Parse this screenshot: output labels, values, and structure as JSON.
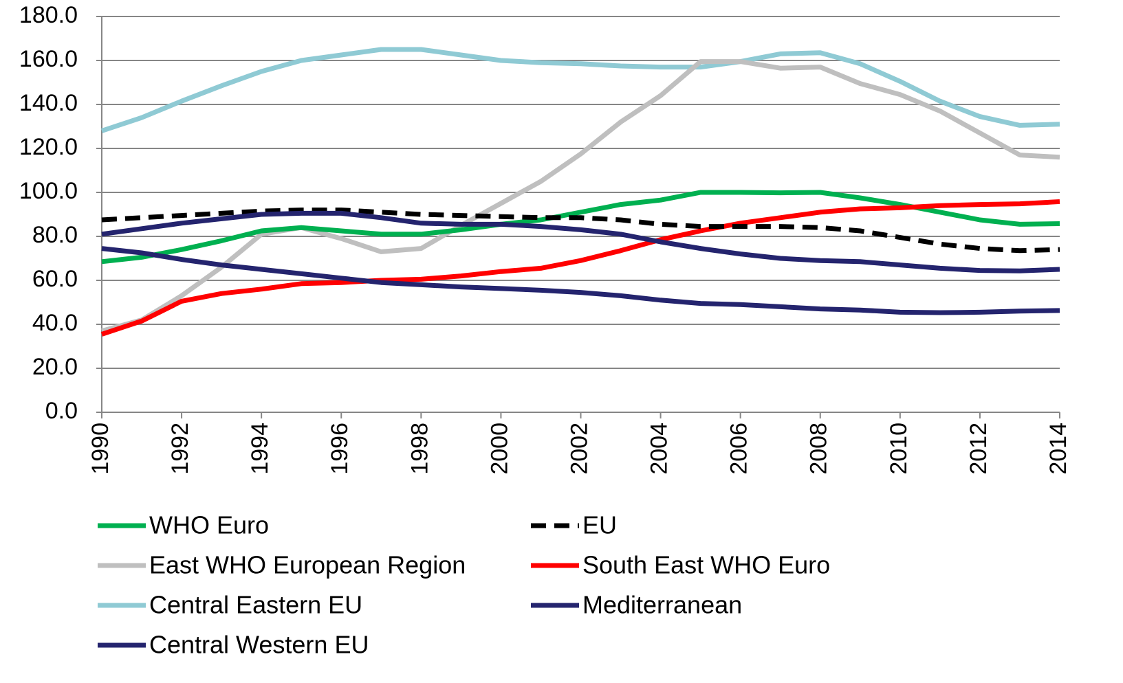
{
  "chart_data": {
    "type": "line",
    "x": [
      1990,
      1991,
      1992,
      1993,
      1994,
      1995,
      1996,
      1997,
      1998,
      1999,
      2000,
      2001,
      2002,
      2003,
      2004,
      2005,
      2006,
      2007,
      2008,
      2009,
      2010,
      2011,
      2012,
      2013,
      2014
    ],
    "series": [
      {
        "name": "WHO Euro",
        "color": "#00b050",
        "values": [
          68.5,
          70.5,
          74,
          78,
          82.5,
          84,
          82.5,
          81,
          81,
          83,
          85.5,
          87.5,
          91,
          94.5,
          96.5,
          100,
          100,
          99.8,
          100,
          97.5,
          94.5,
          91,
          87.5,
          85.5,
          85.8
        ]
      },
      {
        "name": "EU",
        "color": "#000000",
        "dash": true,
        "values": [
          87.5,
          88.5,
          89.5,
          90.5,
          91.5,
          92,
          92,
          91,
          90,
          89.5,
          89,
          88.5,
          88.5,
          87.5,
          85.5,
          84.5,
          84.5,
          84.5,
          84,
          82.5,
          79.5,
          76.5,
          74.5,
          73.5,
          74
        ]
      },
      {
        "name": "East WHO European Region",
        "color": "#bfbfbf",
        "values": [
          37,
          42,
          53,
          66,
          81,
          84,
          79,
          73,
          74.5,
          85,
          95,
          105,
          117.5,
          132,
          144,
          159.5,
          159.5,
          156.5,
          157,
          149.5,
          144.5,
          137,
          127,
          117,
          116
        ]
      },
      {
        "name": "South East WHO Euro",
        "color": "#ff0000",
        "values": [
          35.5,
          41.5,
          50.5,
          54,
          56,
          58.5,
          59,
          60,
          60.5,
          62,
          64,
          65.5,
          69,
          73.5,
          78.5,
          82.5,
          86,
          88.5,
          91,
          92.5,
          93,
          94,
          94.5,
          94.8,
          95.8
        ]
      },
      {
        "name": "Central Eastern EU",
        "color": "#8fcad4",
        "values": [
          128,
          134,
          141.5,
          148.5,
          155,
          160,
          162.5,
          165,
          165,
          162.5,
          160,
          159,
          158.5,
          157.5,
          157,
          157,
          159.5,
          163,
          163.5,
          158.5,
          150.5,
          141.5,
          134.5,
          130.5,
          131
        ]
      },
      {
        "name": "Mediterranean",
        "color": "#24246e",
        "values": [
          74.5,
          72.5,
          69.5,
          67,
          65,
          63,
          61,
          59,
          58,
          57,
          56.3,
          55.5,
          54.5,
          53,
          51,
          49.5,
          49,
          48,
          47,
          46.5,
          45.5,
          45.3,
          45.5,
          46,
          46.3
        ]
      },
      {
        "name": "Central Western EU",
        "color": "#24246e",
        "values": [
          81,
          83.5,
          86,
          88,
          90,
          90.5,
          90.5,
          88.5,
          86,
          85.5,
          85.5,
          84.5,
          83,
          81,
          77.5,
          74.5,
          72,
          70,
          69,
          68.5,
          67,
          65.5,
          64.5,
          64.3,
          65
        ]
      }
    ],
    "xlim": [
      1990,
      2014
    ],
    "xticks": [
      1990,
      1992,
      1994,
      1996,
      1998,
      2000,
      2002,
      2004,
      2006,
      2008,
      2010,
      2012,
      2014
    ],
    "ylim": [
      0,
      180
    ],
    "yticks": [
      {
        "value": 0,
        "label": "0.0"
      },
      {
        "value": 20,
        "label": "20.0"
      },
      {
        "value": 40,
        "label": "40.0"
      },
      {
        "value": 60,
        "label": "60.0"
      },
      {
        "value": 80,
        "label": "80.0"
      },
      {
        "value": 100,
        "label": "100.0"
      },
      {
        "value": 120,
        "label": "120.0"
      },
      {
        "value": 140,
        "label": "140.0"
      },
      {
        "value": 160,
        "label": "160.0"
      },
      {
        "value": 180,
        "label": "180.0"
      }
    ],
    "grid": true,
    "legend": "bottom"
  }
}
